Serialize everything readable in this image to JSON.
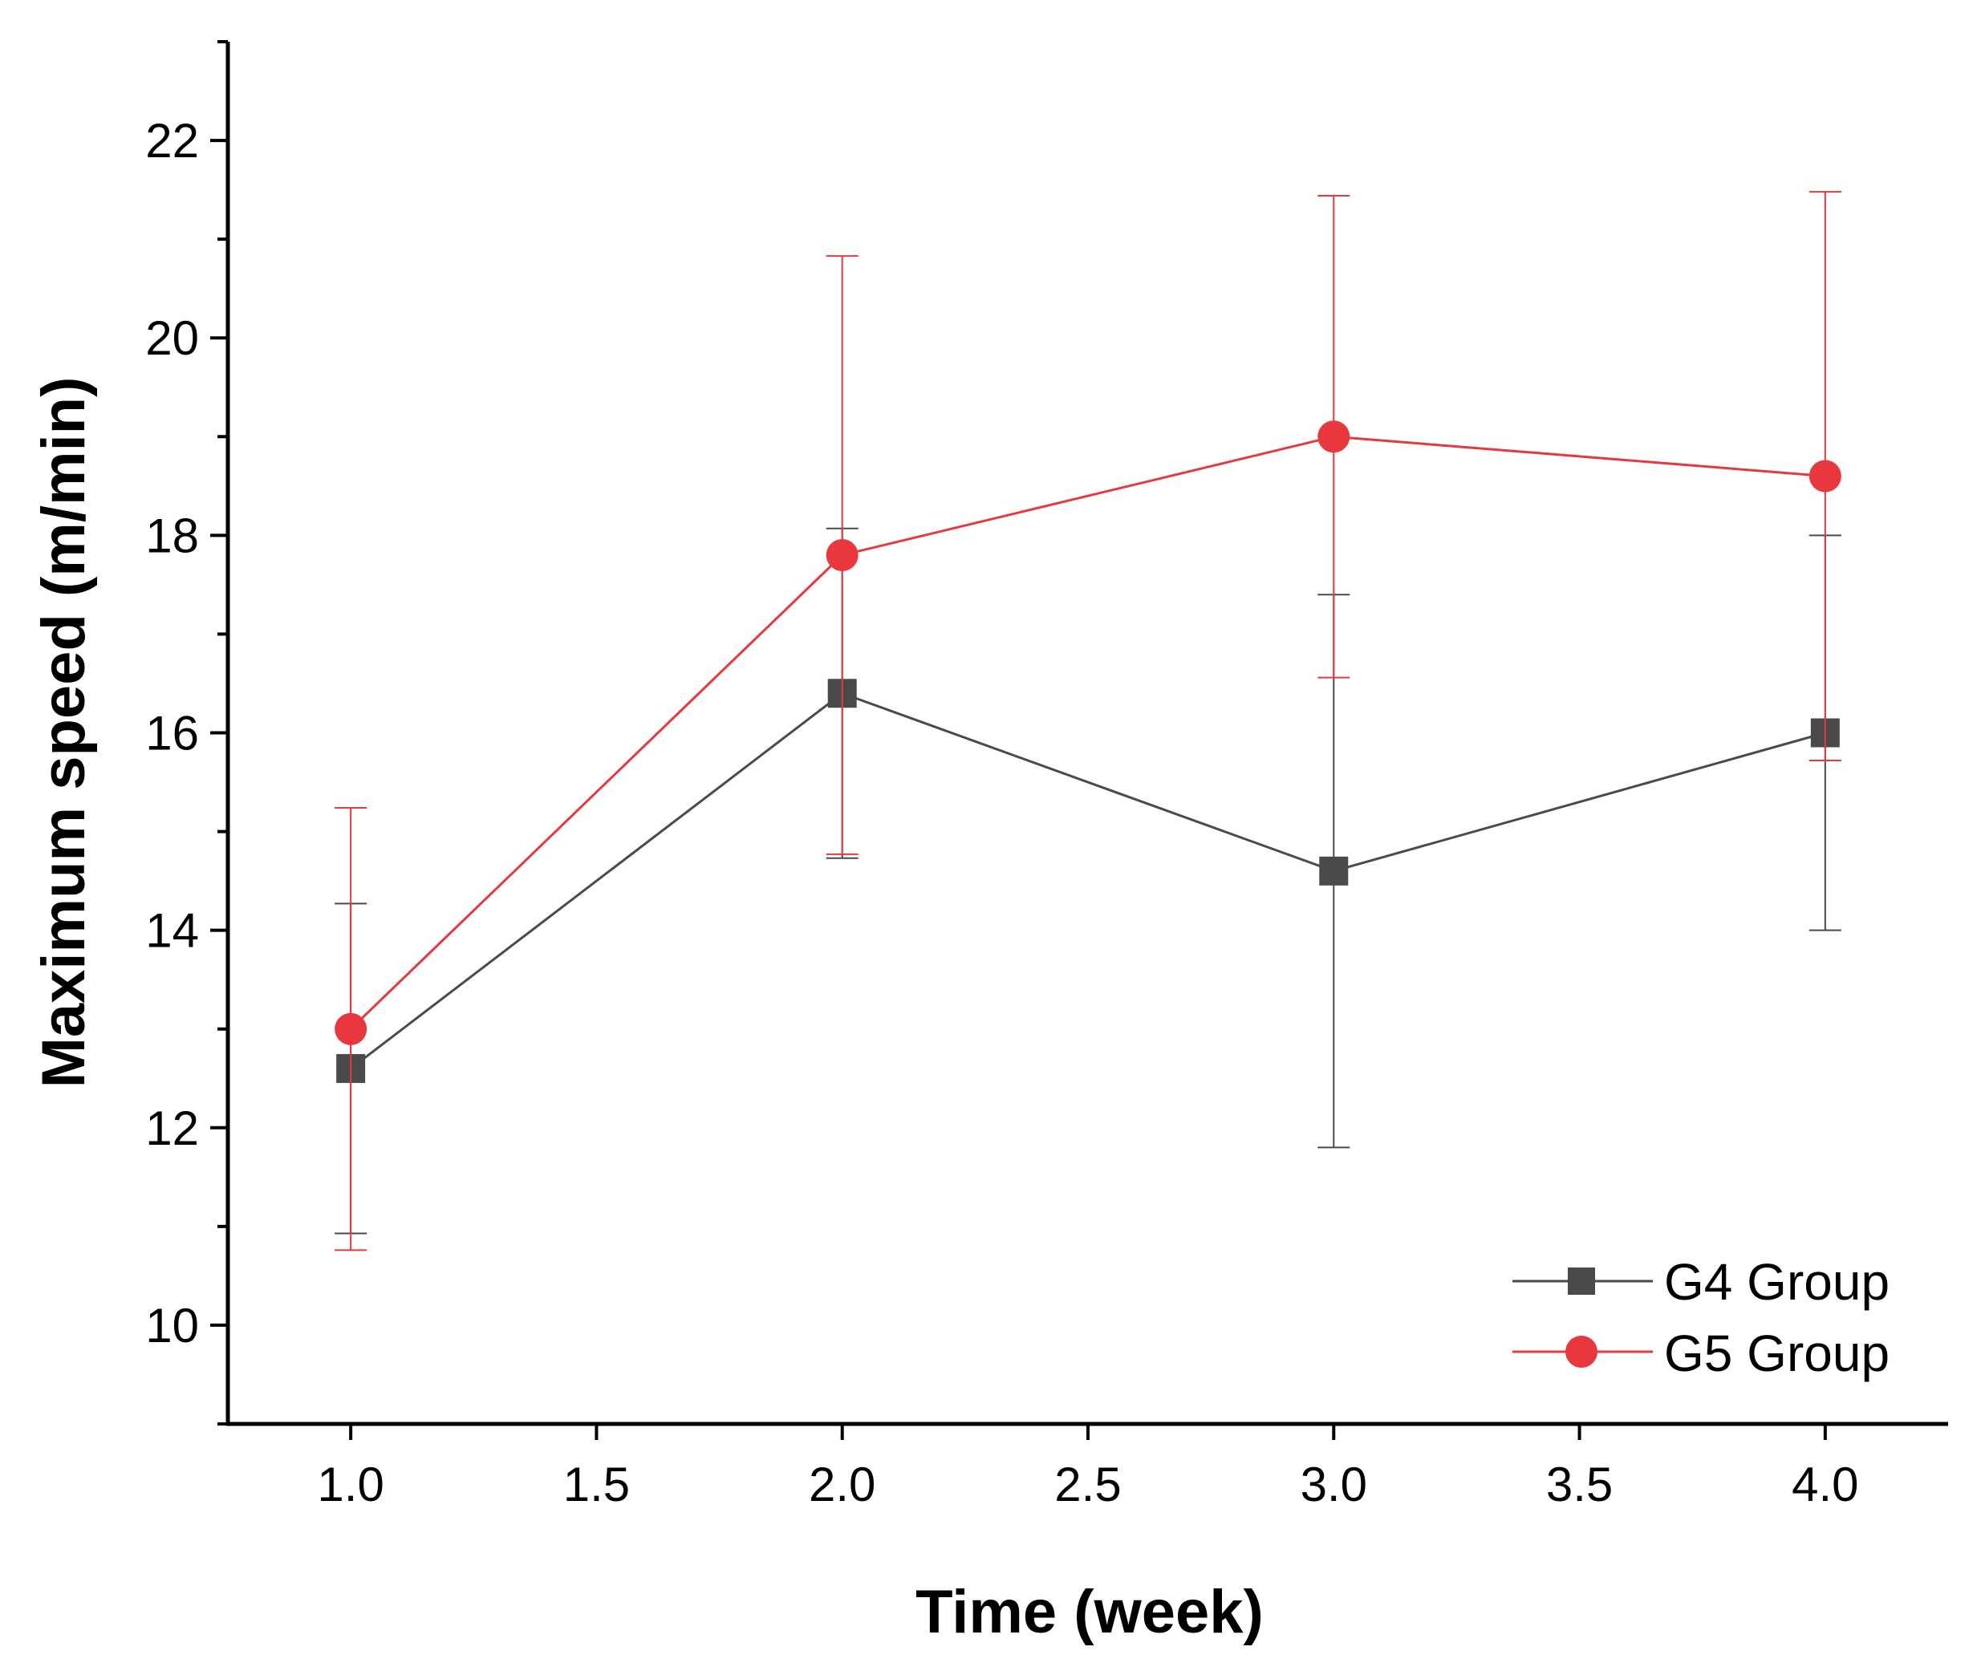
{
  "chart_data": {
    "type": "line",
    "title": "",
    "xlabel": "Time (week)",
    "ylabel": "Maximum speed (m/min)",
    "xlim": [
      0.75,
      4.25
    ],
    "ylim": [
      9,
      23
    ],
    "x_ticks": [
      1.0,
      1.5,
      2.0,
      2.5,
      3.0,
      3.5,
      4.0
    ],
    "x_tick_labels": [
      "1.0",
      "1.5",
      "2.0",
      "2.5",
      "3.0",
      "3.5",
      "4.0"
    ],
    "y_ticks": [
      10,
      12,
      14,
      16,
      18,
      20,
      22
    ],
    "y_tick_labels": [
      "10",
      "12",
      "14",
      "16",
      "18",
      "20",
      "22"
    ],
    "y_minor_ticks": [
      9,
      11,
      13,
      15,
      17,
      19,
      21,
      23
    ],
    "grid": false,
    "legend_position": "bottom-right",
    "series": [
      {
        "name": "G4 Group",
        "marker": "square",
        "color": "#4a4a4a",
        "x": [
          1.0,
          2.0,
          3.0,
          4.0
        ],
        "values": [
          12.6,
          16.4,
          14.6,
          16.0
        ],
        "error": [
          1.67,
          1.67,
          2.8,
          2.0
        ]
      },
      {
        "name": "G5 Group",
        "marker": "circle",
        "color": "#e8383d",
        "x": [
          1.0,
          2.0,
          3.0,
          4.0
        ],
        "values": [
          13.0,
          17.8,
          19.0,
          18.6
        ],
        "error": [
          2.24,
          3.03,
          2.44,
          2.88
        ]
      }
    ]
  }
}
